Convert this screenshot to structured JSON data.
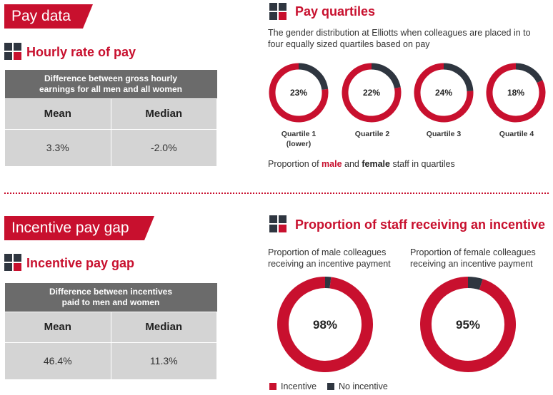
{
  "pay_data": {
    "banner": "Pay data",
    "hourly_heading": "Hourly rate of pay",
    "table": {
      "header": "Difference between gross hourly earnings for all men and all women",
      "columns": [
        "Mean",
        "Median"
      ],
      "values": [
        "3.3%",
        "-2.0%"
      ]
    }
  },
  "pay_quartiles": {
    "heading": "Pay quartiles",
    "description": "The gender distribution at Elliotts when colleagues are placed in to four equally sized quartiles based on pay",
    "quartile_labels": [
      {
        "line1": "Quartile 1",
        "line2": "(lower)"
      },
      {
        "line1": "Quartile 2",
        "line2": ""
      },
      {
        "line1": "Quartile 3",
        "line2": ""
      },
      {
        "line1": "Quartile 4",
        "line2": ""
      }
    ],
    "caption": {
      "prefix": "Proportion of ",
      "male": "male",
      "and": " and ",
      "female": "female",
      "suffix": " staff in quartiles"
    }
  },
  "incentive_gap": {
    "banner": "Incentive pay gap",
    "heading": "Incentive pay gap",
    "table": {
      "header": "Difference between incentives paid to men and women",
      "columns": [
        "Mean",
        "Median"
      ],
      "values": [
        "46.4%",
        "11.3%"
      ]
    }
  },
  "incentive_proportion": {
    "heading": "Proportion of staff receiving an incentive",
    "male_caption": "Proportion of male colleagues receiving an incentive payment",
    "female_caption": "Proportion of female colleagues receiving an incentive payment",
    "legend": [
      {
        "label": "Incentive",
        "color": "#c8102e"
      },
      {
        "label": "No incentive",
        "color": "#2f3640"
      }
    ]
  },
  "colors": {
    "red": "#c8102e",
    "dark": "#2f3640",
    "grey_header": "#6b6b6b",
    "grey_cell": "#d4d4d4"
  },
  "chart_data": [
    {
      "type": "pie",
      "categories": [
        "Quartile 1 (lower)",
        "Quartile 2",
        "Quartile 3",
        "Quartile 4"
      ],
      "values": [
        23,
        22,
        24,
        18
      ],
      "labels": [
        "23%",
        "22%",
        "24%",
        "18%"
      ],
      "series": [
        {
          "name": "female",
          "values": [
            23,
            22,
            24,
            18
          ]
        }
      ],
      "title": "Pay quartiles"
    },
    {
      "type": "pie",
      "categories": [
        "Incentive",
        "No incentive"
      ],
      "values": [
        98,
        2
      ],
      "labels": [
        "98%"
      ],
      "title": "Proportion of male colleagues receiving an incentive payment"
    },
    {
      "type": "pie",
      "categories": [
        "Incentive",
        "No incentive"
      ],
      "values": [
        95,
        5
      ],
      "labels": [
        "95%"
      ],
      "title": "Proportion of female colleagues receiving an incentive payment"
    }
  ]
}
